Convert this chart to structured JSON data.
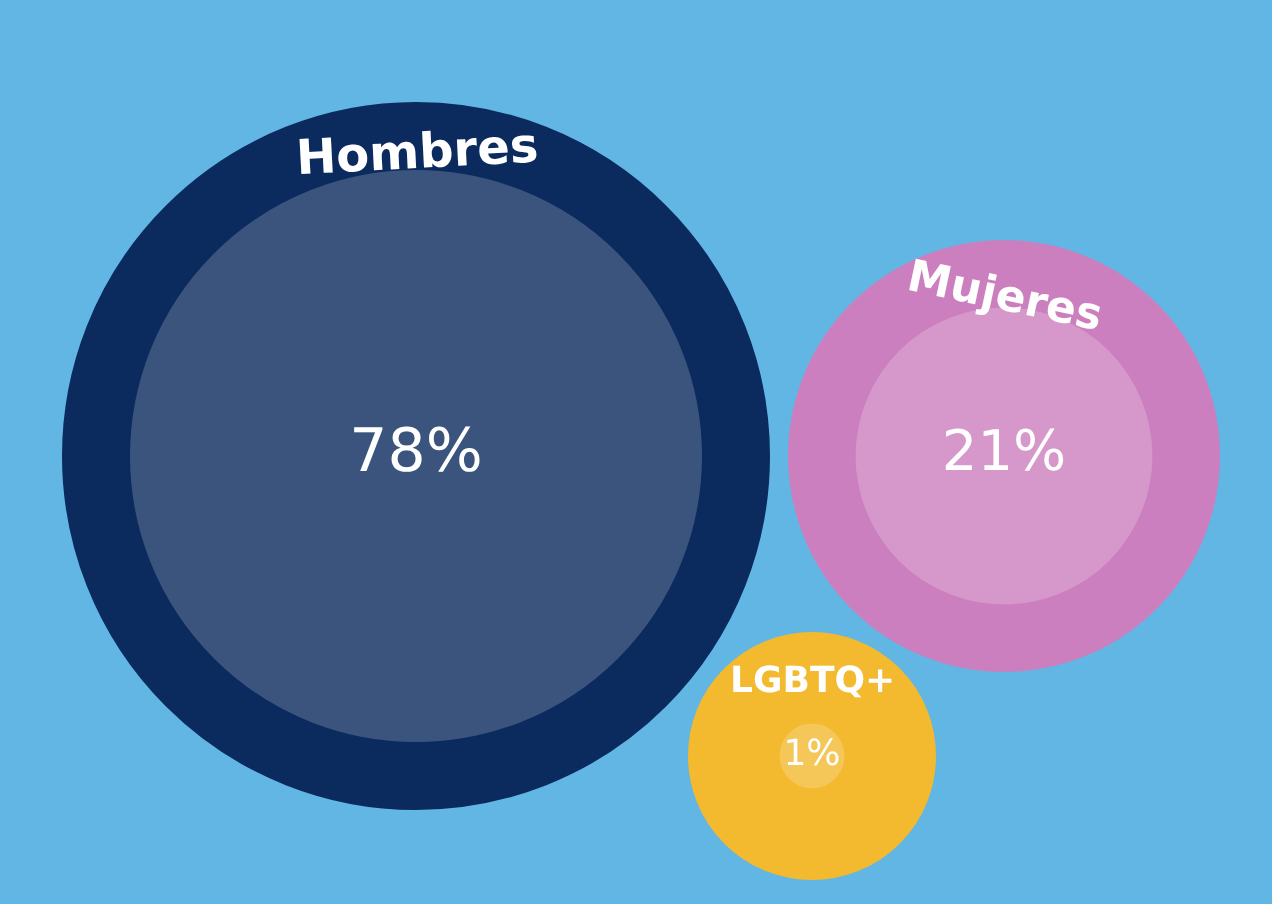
{
  "chart_data": {
    "type": "other",
    "categories": [
      "Hombres",
      "Mujeres",
      "LGBTQ+"
    ],
    "values": [
      78,
      21,
      1
    ],
    "value_labels": [
      "78%",
      "21%",
      "1%"
    ],
    "colors": [
      "#0b2a5e",
      "#cc7fbf",
      "#f3b92f"
    ]
  }
}
